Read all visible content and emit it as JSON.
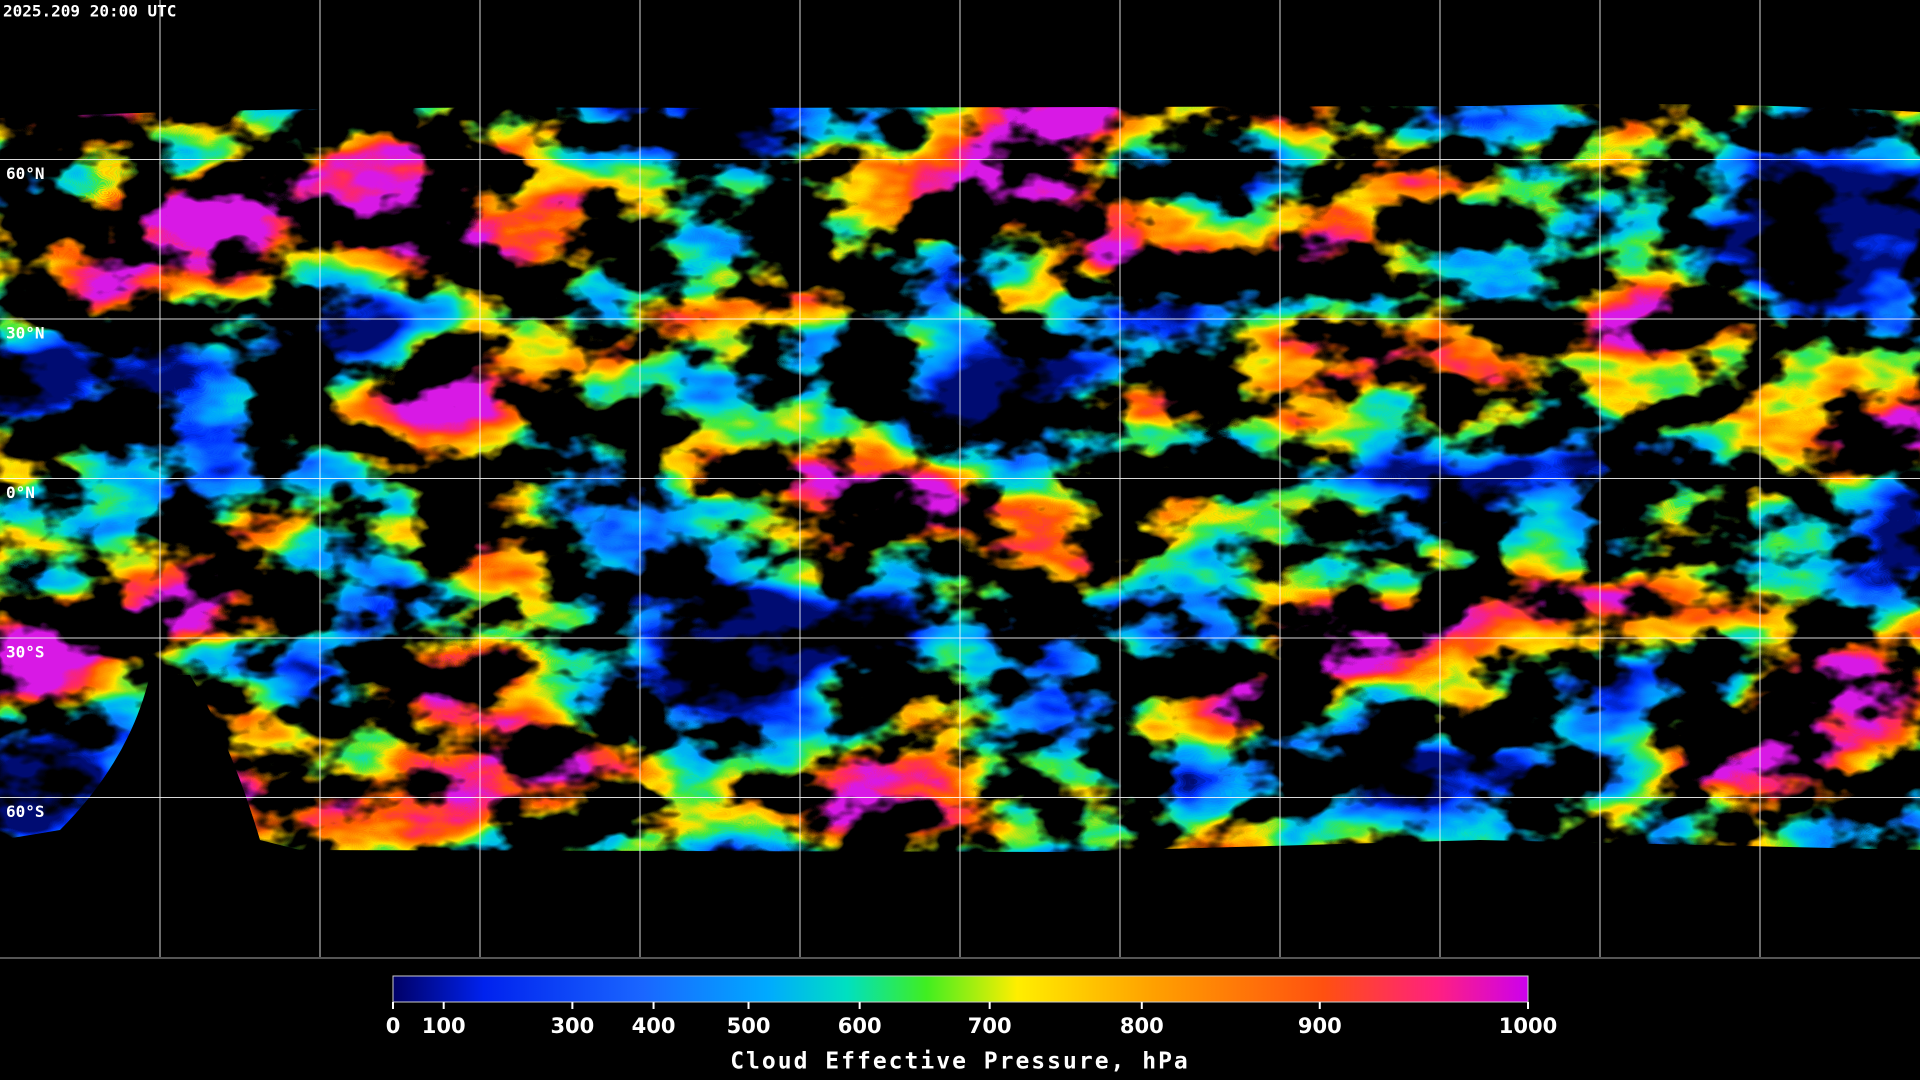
{
  "timestamp": "2025.209 20:00 UTC",
  "lat_labels": [
    {
      "value": 60,
      "label": "60°N"
    },
    {
      "value": 30,
      "label": "30°N"
    },
    {
      "value": 0,
      "label": "0°N"
    },
    {
      "value": -30,
      "label": "30°S"
    },
    {
      "value": -60,
      "label": "60°S"
    }
  ],
  "colorbar": {
    "title": "Cloud Effective Pressure, hPa",
    "scale": "exponential",
    "lim": [
      0,
      1000
    ],
    "ticks": [
      0,
      100,
      300,
      400,
      500,
      600,
      700,
      800,
      900,
      1000
    ]
  }
}
